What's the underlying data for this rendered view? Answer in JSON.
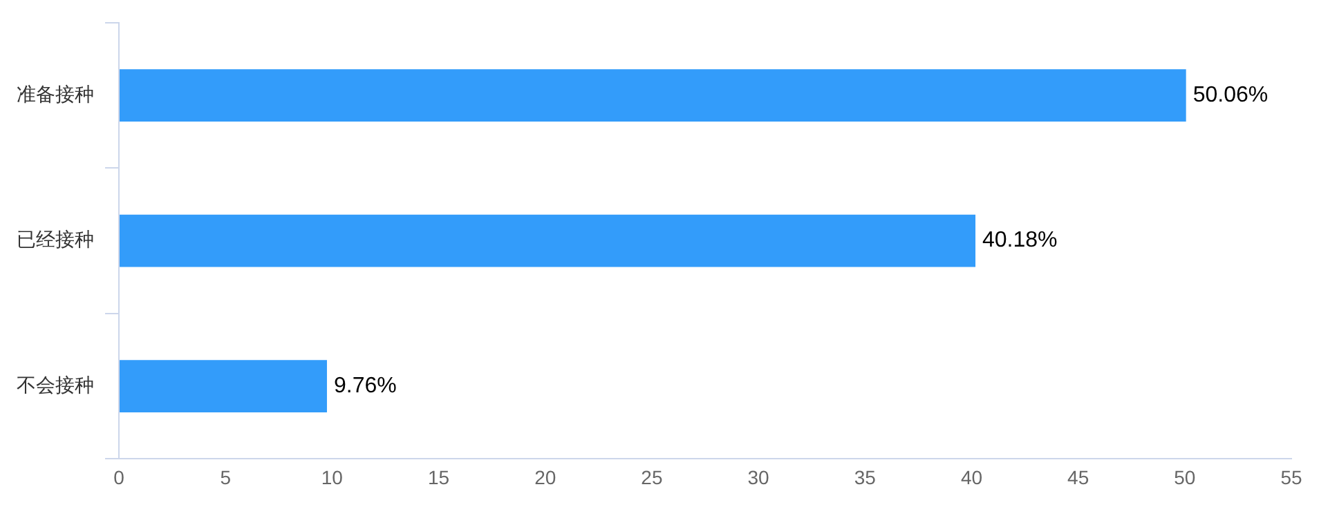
{
  "chart_data": {
    "type": "bar",
    "orientation": "horizontal",
    "categories": [
      "准备接种",
      "已经接种",
      "不会接种"
    ],
    "values": [
      50.06,
      40.18,
      9.76
    ],
    "color": "#339cfa",
    "value_labels": [
      "50.06%",
      "40.18%",
      "9.76%"
    ],
    "xlim": [
      0,
      55
    ],
    "xticks": [
      0,
      5,
      10,
      15,
      20,
      25,
      30,
      35,
      40,
      45,
      50,
      55
    ],
    "grid": false,
    "legend": false
  }
}
